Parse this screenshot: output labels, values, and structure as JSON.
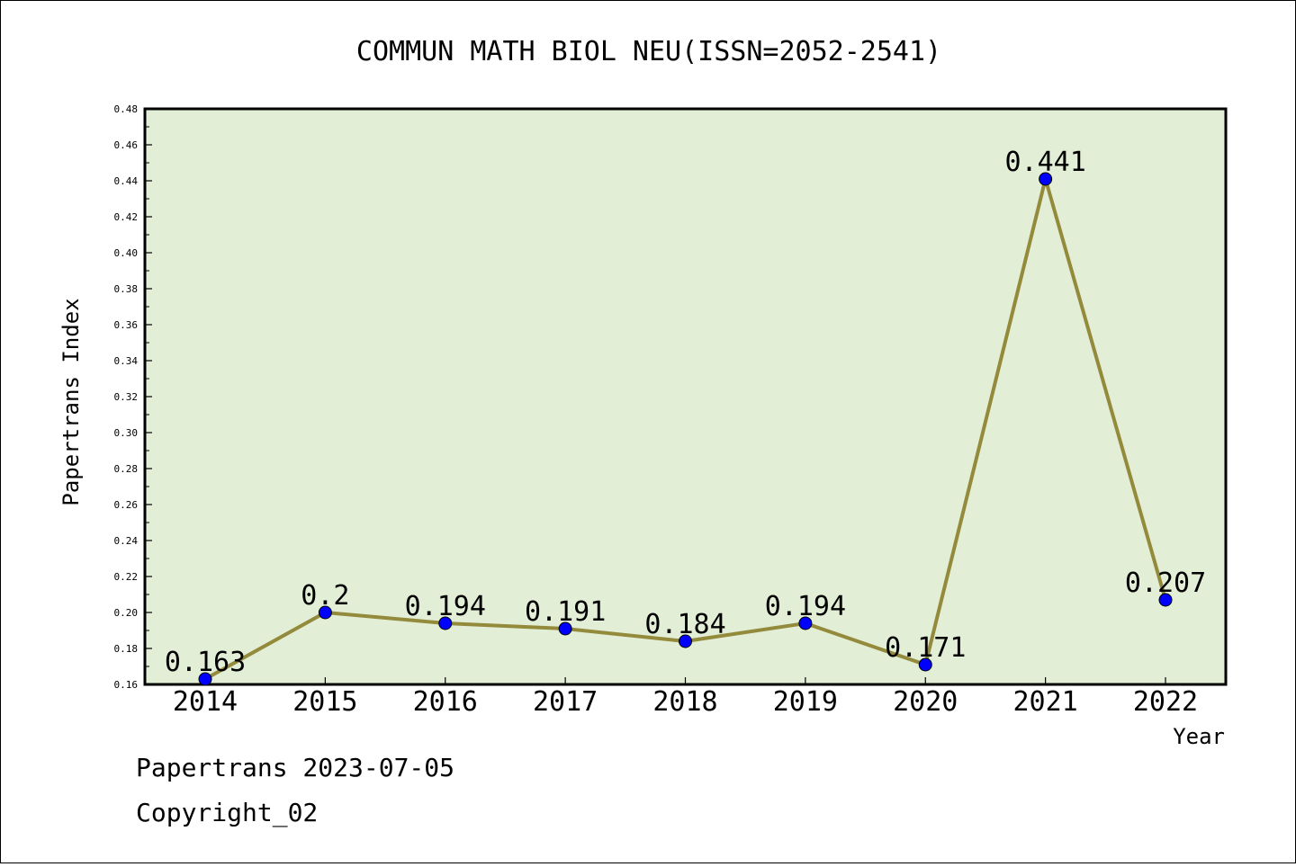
{
  "chart_data": {
    "type": "line",
    "title": "COMMUN MATH BIOL NEU(ISSN=2052-2541)",
    "xlabel": "Year",
    "ylabel": "Papertrans Index",
    "categories": [
      "2014",
      "2015",
      "2016",
      "2017",
      "2018",
      "2019",
      "2020",
      "2021",
      "2022"
    ],
    "series": [
      {
        "values": [
          0.163,
          0.2,
          0.194,
          0.191,
          0.184,
          0.194,
          0.171,
          0.441,
          0.207
        ],
        "labels": [
          "0.163",
          "0.2",
          "0.194",
          "0.191",
          "0.184",
          "0.194",
          "0.171",
          "0.441",
          "0.207"
        ]
      }
    ],
    "ylim": [
      0.16,
      0.48
    ],
    "yticks": [
      "0.16",
      "0.18",
      "0.20",
      "0.22",
      "0.24",
      "0.26",
      "0.28",
      "0.30",
      "0.32",
      "0.34",
      "0.36",
      "0.38",
      "0.40",
      "0.42",
      "0.44",
      "0.46",
      "0.48"
    ],
    "grid": false,
    "legend": "none",
    "colors": {
      "plot_background": "#e2efd6",
      "line": "#948a3c",
      "marker": "#0000ff"
    }
  },
  "footer": {
    "date_line": "Papertrans 2023-07-05",
    "copyright": "Copyright_02"
  }
}
